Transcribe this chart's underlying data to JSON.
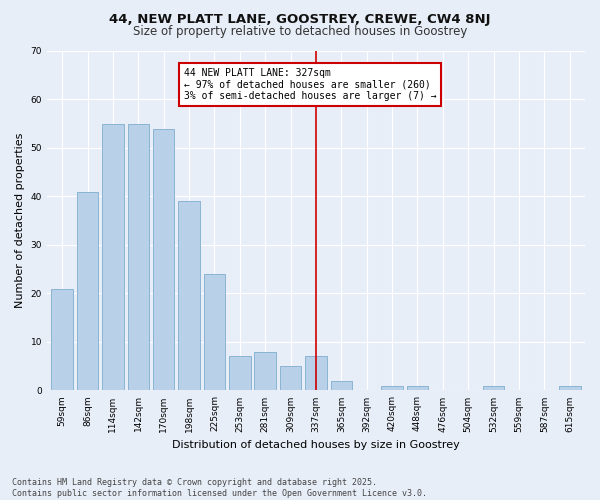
{
  "title": "44, NEW PLATT LANE, GOOSTREY, CREWE, CW4 8NJ",
  "subtitle": "Size of property relative to detached houses in Goostrey",
  "xlabel": "Distribution of detached houses by size in Goostrey",
  "ylabel": "Number of detached properties",
  "categories": [
    "59sqm",
    "86sqm",
    "114sqm",
    "142sqm",
    "170sqm",
    "198sqm",
    "225sqm",
    "253sqm",
    "281sqm",
    "309sqm",
    "337sqm",
    "365sqm",
    "392sqm",
    "420sqm",
    "448sqm",
    "476sqm",
    "504sqm",
    "532sqm",
    "559sqm",
    "587sqm",
    "615sqm"
  ],
  "values": [
    21,
    41,
    55,
    55,
    54,
    39,
    24,
    7,
    8,
    5,
    7,
    2,
    0,
    1,
    1,
    0,
    0,
    1,
    0,
    0,
    1
  ],
  "bar_color": "#b8d0e8",
  "bar_edge_color": "#8ab4d4",
  "vline_x": 10,
  "annotation_text": "44 NEW PLATT LANE: 327sqm\n← 97% of detached houses are smaller (260)\n3% of semi-detached houses are larger (7) →",
  "annotation_box_color": "#ffffff",
  "annotation_box_edge": "#cc0000",
  "vline_color": "#cc0000",
  "ylim": [
    0,
    70
  ],
  "yticks": [
    0,
    10,
    20,
    30,
    40,
    50,
    60,
    70
  ],
  "background_color": "#e8eef8",
  "grid_color": "#ffffff",
  "footer": "Contains HM Land Registry data © Crown copyright and database right 2025.\nContains public sector information licensed under the Open Government Licence v3.0.",
  "title_fontsize": 9.5,
  "subtitle_fontsize": 8.5,
  "xlabel_fontsize": 8,
  "ylabel_fontsize": 8,
  "tick_fontsize": 6.5,
  "footer_fontsize": 6,
  "annotation_fontsize": 7
}
